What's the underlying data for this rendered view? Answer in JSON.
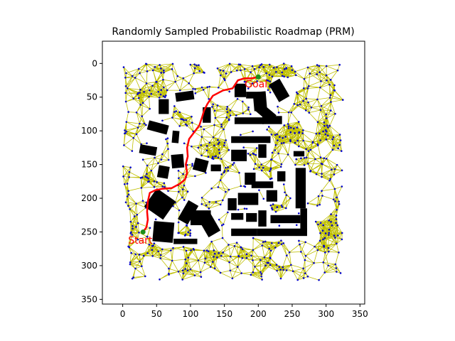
{
  "chart_data": {
    "type": "scatter",
    "title": "Randomly Sampled Probabilistic Roadmap (PRM)",
    "xlabel": "",
    "ylabel": "",
    "xlim": [
      -30,
      357
    ],
    "ylim": [
      357,
      -33
    ],
    "y_inverted": true,
    "xticks": [
      0,
      50,
      100,
      150,
      200,
      250,
      300,
      350
    ],
    "yticks": [
      0,
      50,
      100,
      150,
      200,
      250,
      300,
      350
    ],
    "grid": false,
    "colors": {
      "nodes": "#0000cc",
      "edges": "#bfbf00",
      "path": "#ff0000",
      "obstacles": "#000000",
      "start_goal_marker": "#1a8f1a",
      "annotation_text": "#ff0000"
    },
    "annotations": [
      {
        "text": "Start",
        "x": 8,
        "y": 262
      },
      {
        "text": "Goal",
        "x": 180,
        "y": 30
      }
    ],
    "start": {
      "label": "Start",
      "x": 30,
      "y": 250
    },
    "goal": {
      "label": "Goal",
      "x": 200,
      "y": 20
    },
    "path": [
      [
        30,
        250
      ],
      [
        35,
        243
      ],
      [
        37,
        232
      ],
      [
        36,
        220
      ],
      [
        37,
        205
      ],
      [
        40,
        192
      ],
      [
        48,
        188
      ],
      [
        58,
        186
      ],
      [
        72,
        185
      ],
      [
        85,
        178
      ],
      [
        92,
        172
      ],
      [
        95,
        162
      ],
      [
        93,
        150
      ],
      [
        96,
        138
      ],
      [
        95,
        125
      ],
      [
        98,
        112
      ],
      [
        107,
        100
      ],
      [
        113,
        92
      ],
      [
        117,
        80
      ],
      [
        120,
        70
      ],
      [
        125,
        60
      ],
      [
        133,
        48
      ],
      [
        148,
        40
      ],
      [
        162,
        37
      ],
      [
        170,
        25
      ],
      [
        180,
        22
      ],
      [
        190,
        22
      ],
      [
        200,
        20
      ]
    ],
    "obstacles": [
      {
        "x": [
          78,
          105
        ],
        "y": [
          42,
          55
        ],
        "angle": -8
      },
      {
        "x": [
          53,
          68
        ],
        "y": [
          53,
          75
        ],
        "angle": 0
      },
      {
        "x": [
          37,
          67
        ],
        "y": [
          88,
          102
        ],
        "angle": 15
      },
      {
        "x": [
          73,
          83
        ],
        "y": [
          100,
          118
        ],
        "angle": 5
      },
      {
        "x": [
          118,
          130
        ],
        "y": [
          65,
          88
        ],
        "angle": 0
      },
      {
        "x": [
          165,
          182
        ],
        "y": [
          30,
          50
        ],
        "angle": 0
      },
      {
        "x": [
          182,
          205
        ],
        "y": [
          42,
          52
        ],
        "angle": 0
      },
      {
        "x": [
          193,
          212
        ],
        "y": [
          42,
          70
        ],
        "angle": -5
      },
      {
        "x": [
          203,
          218
        ],
        "y": [
          58,
          88
        ],
        "angle": -50
      },
      {
        "x": [
          222,
          240
        ],
        "y": [
          25,
          55
        ],
        "angle": -30
      },
      {
        "x": [
          165,
          208
        ],
        "y": [
          80,
          90
        ],
        "angle": 0
      },
      {
        "x": [
          206,
          235
        ],
        "y": [
          78,
          90
        ],
        "angle": 0
      },
      {
        "x": [
          160,
          218
        ],
        "y": [
          108,
          118
        ],
        "angle": 0
      },
      {
        "x": [
          25,
          50
        ],
        "y": [
          122,
          135
        ],
        "angle": 10
      },
      {
        "x": [
          72,
          90
        ],
        "y": [
          135,
          155
        ],
        "angle": -5
      },
      {
        "x": [
          105,
          125
        ],
        "y": [
          142,
          160
        ],
        "angle": 15
      },
      {
        "x": [
          130,
          145
        ],
        "y": [
          150,
          160
        ],
        "angle": 0
      },
      {
        "x": [
          52,
          68
        ],
        "y": [
          152,
          170
        ],
        "angle": 10
      },
      {
        "x": [
          160,
          183
        ],
        "y": [
          128,
          145
        ],
        "angle": 0
      },
      {
        "x": [
          200,
          212
        ],
        "y": [
          120,
          140
        ],
        "angle": 0
      },
      {
        "x": [
          252,
          268
        ],
        "y": [
          130,
          138
        ],
        "angle": 0
      },
      {
        "x": [
          228,
          240
        ],
        "y": [
          160,
          175
        ],
        "angle": 0
      },
      {
        "x": [
          255,
          270
        ],
        "y": [
          155,
          215
        ],
        "angle": 0
      },
      {
        "x": [
          180,
          196
        ],
        "y": [
          162,
          180
        ],
        "angle": 0
      },
      {
        "x": [
          190,
          222
        ],
        "y": [
          175,
          185
        ],
        "angle": 0
      },
      {
        "x": [
          212,
          228
        ],
        "y": [
          188,
          205
        ],
        "angle": 0
      },
      {
        "x": [
          155,
          168
        ],
        "y": [
          200,
          218
        ],
        "angle": 0
      },
      {
        "x": [
          170,
          200
        ],
        "y": [
          192,
          210
        ],
        "angle": 0
      },
      {
        "x": [
          38,
          72
        ],
        "y": [
          192,
          225
        ],
        "angle": 35
      },
      {
        "x": [
          88,
          105
        ],
        "y": [
          205,
          237
        ],
        "angle": 30
      },
      {
        "x": [
          100,
          130
        ],
        "y": [
          218,
          240
        ],
        "angle": 0
      },
      {
        "x": [
          118,
          138
        ],
        "y": [
          225,
          255
        ],
        "angle": -30
      },
      {
        "x": [
          160,
          178
        ],
        "y": [
          222,
          232
        ],
        "angle": 0
      },
      {
        "x": [
          182,
          198
        ],
        "y": [
          222,
          235
        ],
        "angle": 0
      },
      {
        "x": [
          200,
          212
        ],
        "y": [
          218,
          242
        ],
        "angle": 0
      },
      {
        "x": [
          218,
          262
        ],
        "y": [
          225,
          237
        ],
        "angle": 0
      },
      {
        "x": [
          262,
          272
        ],
        "y": [
          215,
          250
        ],
        "angle": 0
      },
      {
        "x": [
          198,
          272
        ],
        "y": [
          245,
          256
        ],
        "angle": 0
      },
      {
        "x": [
          160,
          198
        ],
        "y": [
          245,
          256
        ],
        "angle": 0
      },
      {
        "x": [
          45,
          75
        ],
        "y": [
          235,
          265
        ],
        "angle": 5
      },
      {
        "x": [
          75,
          110
        ],
        "y": [
          260,
          268
        ],
        "angle": 0
      }
    ]
  }
}
